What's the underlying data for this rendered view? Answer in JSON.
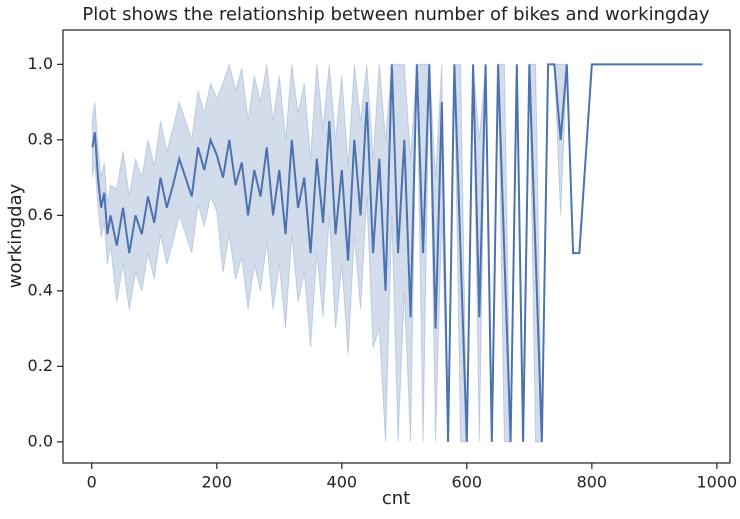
{
  "chart_data": {
    "type": "line",
    "title": "Plot shows the relationship between number of bikes and workingday",
    "x_label": "cnt",
    "y_label": "workingday",
    "x": [
      1,
      5,
      10,
      15,
      20,
      25,
      30,
      40,
      50,
      60,
      70,
      80,
      90,
      100,
      110,
      120,
      130,
      140,
      150,
      160,
      170,
      180,
      190,
      200,
      210,
      220,
      230,
      240,
      250,
      260,
      270,
      280,
      290,
      300,
      310,
      320,
      330,
      340,
      350,
      360,
      370,
      380,
      390,
      400,
      410,
      420,
      430,
      440,
      450,
      460,
      470,
      480,
      490,
      500,
      510,
      520,
      530,
      540,
      550,
      560,
      570,
      580,
      590,
      600,
      610,
      620,
      630,
      640,
      650,
      660,
      670,
      680,
      690,
      700,
      710,
      720,
      730,
      740,
      750,
      760,
      770,
      780,
      800,
      900,
      977
    ],
    "series": [
      {
        "name": "workingday",
        "color": "#4c72b0",
        "values": [
          0.78,
          0.82,
          0.7,
          0.62,
          0.66,
          0.55,
          0.6,
          0.52,
          0.62,
          0.5,
          0.6,
          0.55,
          0.65,
          0.58,
          0.7,
          0.62,
          0.68,
          0.75,
          0.7,
          0.65,
          0.78,
          0.72,
          0.8,
          0.76,
          0.7,
          0.8,
          0.68,
          0.74,
          0.6,
          0.72,
          0.65,
          0.78,
          0.6,
          0.72,
          0.55,
          0.8,
          0.62,
          0.7,
          0.5,
          0.75,
          0.58,
          0.85,
          0.55,
          0.72,
          0.48,
          0.8,
          0.6,
          0.9,
          0.5,
          0.75,
          0.4,
          1,
          0.5,
          0.8,
          0.33,
          1,
          0.5,
          1,
          0.3,
          0.9,
          0,
          1,
          0.5,
          0,
          1,
          0.33,
          1,
          0,
          1,
          0.5,
          0,
          1,
          0,
          1,
          0.5,
          0,
          1,
          1,
          0.8,
          1,
          0.5,
          0.5,
          1,
          1,
          1
        ],
        "ci_lower": [
          0.7,
          0.74,
          0.62,
          0.54,
          0.58,
          0.47,
          0.52,
          0.37,
          0.47,
          0.35,
          0.45,
          0.4,
          0.5,
          0.43,
          0.55,
          0.47,
          0.53,
          0.6,
          0.55,
          0.5,
          0.63,
          0.57,
          0.65,
          0.61,
          0.45,
          0.55,
          0.43,
          0.49,
          0.35,
          0.47,
          0.4,
          0.53,
          0.35,
          0.47,
          0.3,
          0.55,
          0.37,
          0.45,
          0.25,
          0.5,
          0.33,
          0.6,
          0.3,
          0.47,
          0.23,
          0.55,
          0.35,
          0.65,
          0.25,
          0.3,
          0,
          0.6,
          0,
          0.4,
          0,
          1,
          0,
          1,
          0,
          0.6,
          0,
          1,
          0,
          0,
          1,
          0,
          1,
          0,
          1,
          0,
          0,
          1,
          0,
          1,
          0,
          0,
          1,
          1,
          0.6,
          1,
          0.5,
          0.5,
          1,
          1,
          1
        ],
        "ci_upper": [
          0.86,
          0.9,
          0.78,
          0.7,
          0.74,
          0.63,
          0.68,
          0.67,
          0.77,
          0.65,
          0.75,
          0.7,
          0.8,
          0.73,
          0.85,
          0.77,
          0.83,
          0.9,
          0.85,
          0.8,
          0.93,
          0.87,
          0.95,
          0.91,
          0.95,
          1,
          0.93,
          0.99,
          0.85,
          0.97,
          0.9,
          1,
          0.85,
          0.97,
          0.8,
          1,
          0.87,
          0.95,
          0.75,
          1,
          0.83,
          1,
          0.8,
          0.97,
          0.73,
          1,
          0.85,
          1,
          0.75,
          1,
          0.8,
          1,
          1,
          1,
          0.75,
          1,
          1,
          1,
          0.7,
          1,
          0,
          1,
          1,
          0,
          1,
          0.8,
          1,
          0,
          1,
          1,
          0,
          1,
          0,
          1,
          1,
          0,
          1,
          1,
          1,
          1,
          0.5,
          0.5,
          1,
          1,
          1
        ]
      }
    ],
    "xlim": [
      -46,
      1021
    ],
    "ylim": [
      -0.056,
      1.091
    ],
    "xticks": [
      0,
      200,
      400,
      600,
      800,
      1000
    ],
    "yticks": [
      {
        "value": 0,
        "label": "0.0"
      },
      0.2,
      0.4,
      0.6,
      0.8,
      {
        "value": 1,
        "label": "1.0"
      }
    ],
    "grid": false
  }
}
